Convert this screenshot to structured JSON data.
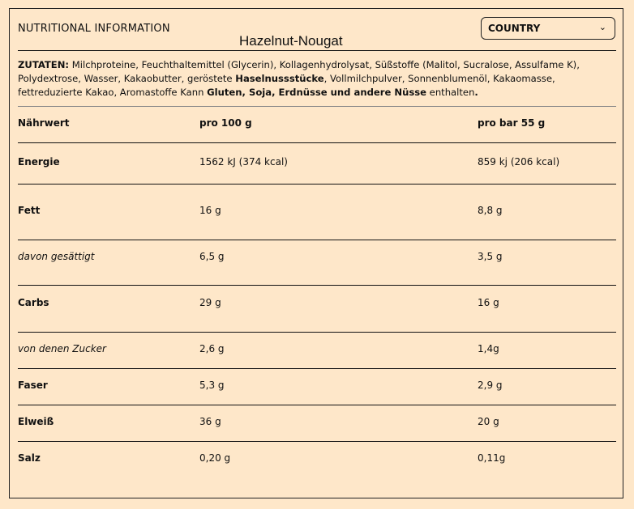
{
  "header": {
    "title": "NUTRITIONAL INFORMATION",
    "product": "Hazelnut-Nougat",
    "country_select": "COUNTRY"
  },
  "ingredients": {
    "label": "ZUTATEN:",
    "part1": " Milchproteine, Feuchthaltemittel (Glycerin), Kollagenhydrolysat, Süßstoffe (Malitol, Sucralose, Assulfame K), Polydextrose, Wasser, Kakaobutter, geröstete ",
    "bold1": "Haselnussstücke",
    "part2": ", Vollmilchpulver, Sonnenblumenöl, Kakaomasse, fettreduzierte Kakao, Aromastoffe Kann ",
    "bold2": "Gluten, Soja, Erdnüsse und andere Nüsse",
    "part3": " enthalten",
    "end": "."
  },
  "table": {
    "headers": [
      "Nährwert",
      "pro 100 g",
      "pro bar 55 g"
    ],
    "rows": [
      [
        "Energie",
        "1562 kJ (374 kcal)",
        "859 kj (206 kcal)"
      ],
      [
        "Fett",
        "16 g",
        "8,8 g"
      ],
      [
        "davon gesättigt",
        "6,5 g",
        "3,5 g"
      ],
      [
        "Carbs",
        "29 g",
        "16 g"
      ],
      [
        "von denen Zucker",
        "2,6 g",
        "1,4g"
      ],
      [
        "Faser",
        "5,3 g",
        "2,9 g"
      ],
      [
        "Elweiß",
        "36 g",
        "20 g"
      ],
      [
        "Salz",
        "0,20 g",
        "0,11g"
      ]
    ]
  }
}
